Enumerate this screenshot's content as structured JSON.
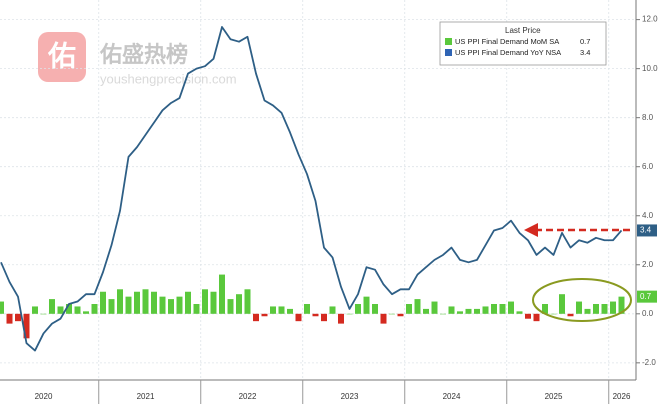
{
  "watermark": {
    "icon": "佑",
    "title": "佑盛热榜",
    "url": "youshengprecision.com"
  },
  "chart_data": {
    "type": "combo",
    "legend_title": "Last Price",
    "legend": "top-right",
    "grid": true,
    "categories": [
      null,
      null,
      null,
      null,
      null,
      "2020",
      null,
      null,
      null,
      null,
      null,
      null,
      null,
      null,
      null,
      null,
      null,
      "2021",
      null,
      null,
      null,
      null,
      null,
      null,
      null,
      null,
      null,
      null,
      null,
      "2022",
      null,
      null,
      null,
      null,
      null,
      null,
      null,
      null,
      null,
      null,
      null,
      "2023",
      null,
      null,
      null,
      null,
      null,
      null,
      null,
      null,
      null,
      null,
      null,
      "2024",
      null,
      null,
      null,
      null,
      null,
      null,
      null,
      null,
      null,
      null,
      null,
      "2025",
      null,
      null,
      null,
      null,
      null,
      null,
      null,
      "2026"
    ],
    "ylim": [
      -2.7,
      12.8
    ],
    "yticks": [
      {
        "value": -2,
        "label": "-2.0"
      },
      {
        "value": 0,
        "label": "0.0"
      },
      {
        "value": 2,
        "label": "2.0"
      },
      {
        "value": 4,
        "label": "4.0"
      },
      {
        "value": 6,
        "label": "6.0"
      },
      {
        "value": 8,
        "label": "8.0"
      },
      {
        "value": 10,
        "label": "10.0"
      },
      {
        "value": 12,
        "label": "12.0"
      }
    ],
    "series": [
      {
        "name": "US PPI Final Demand MoM SA",
        "type": "bar",
        "color": "#5ac83c",
        "negative_color": "#d42a20",
        "values": [
          0.5,
          -0.4,
          -0.3,
          -1.0,
          0.3,
          0.0,
          0.6,
          0.3,
          0.4,
          0.3,
          0.1,
          0.4,
          0.9,
          0.6,
          1.0,
          0.7,
          0.9,
          1.0,
          0.9,
          0.7,
          0.6,
          0.7,
          0.9,
          0.4,
          1.0,
          0.9,
          1.6,
          0.6,
          0.8,
          1.0,
          -0.3,
          -0.1,
          0.3,
          0.3,
          0.2,
          -0.3,
          0.4,
          -0.1,
          -0.3,
          0.3,
          -0.4,
          0.0,
          0.4,
          0.7,
          0.4,
          -0.4,
          0.0,
          -0.1,
          0.4,
          0.6,
          0.2,
          0.5,
          0.0,
          0.3,
          0.1,
          0.2,
          0.2,
          0.3,
          0.4,
          0.4,
          0.5,
          0.1,
          -0.2,
          -0.3,
          0.4,
          0.0,
          0.8,
          -0.1,
          0.5,
          0.2,
          0.4,
          0.4,
          0.5,
          0.7
        ]
      },
      {
        "name": "US PPI Final Demand YoY NSA",
        "type": "line",
        "color": "#2e5f86",
        "values": [
          2.1,
          1.3,
          0.7,
          -1.2,
          -1.5,
          -0.8,
          -0.4,
          -0.2,
          0.4,
          0.5,
          0.8,
          0.8,
          1.7,
          2.8,
          4.2,
          6.4,
          6.8,
          7.3,
          7.8,
          8.3,
          8.6,
          8.8,
          9.8,
          10.0,
          10.1,
          10.4,
          11.7,
          11.2,
          11.1,
          11.3,
          9.8,
          8.7,
          8.5,
          8.2,
          7.4,
          6.5,
          5.7,
          4.6,
          2.7,
          2.3,
          1.1,
          0.2,
          0.8,
          1.9,
          1.8,
          1.2,
          0.8,
          1.0,
          1.0,
          1.6,
          1.9,
          2.2,
          2.4,
          2.7,
          2.2,
          2.1,
          2.2,
          2.8,
          3.4,
          3.5,
          3.8,
          3.3,
          3.0,
          2.4,
          2.7,
          2.4,
          3.3,
          2.7,
          3.0,
          2.9,
          3.1,
          3.0,
          3.0,
          3.4
        ]
      }
    ]
  }
}
